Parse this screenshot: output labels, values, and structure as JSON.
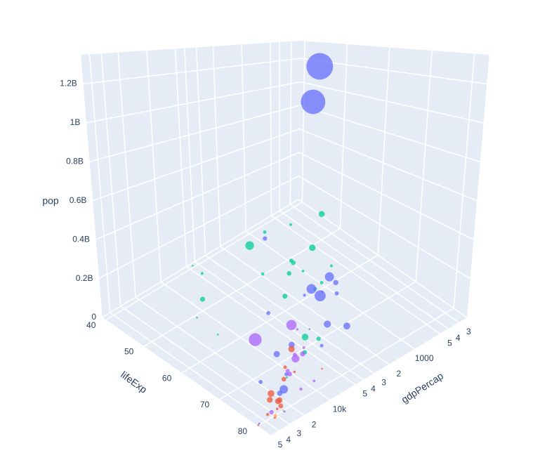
{
  "chart_data": {
    "type": "scatter3d",
    "x_label": "gdpPercap",
    "y_label": "lifeExp",
    "z_label": "pop",
    "xlog": true,
    "grid": true,
    "xlim": [
      240,
      50000
    ],
    "ylim": [
      39,
      83.5
    ],
    "zlim": [
      0,
      1350000000
    ],
    "xticks": [
      {
        "value": 300,
        "label": "3"
      },
      {
        "value": 400,
        "label": "4"
      },
      {
        "value": 500,
        "label": "5"
      },
      1000,
      {
        "value": 2000,
        "label": "2"
      },
      {
        "value": 3000,
        "label": "3"
      },
      {
        "value": 4000,
        "label": "4"
      },
      {
        "value": 5000,
        "label": "5"
      },
      {
        "value": 10000,
        "label": "10k"
      },
      {
        "value": 20000,
        "label": "2"
      },
      {
        "value": 30000,
        "label": "3"
      },
      {
        "value": 40000,
        "label": "4"
      },
      {
        "value": 50000,
        "label": "5"
      }
    ],
    "yticks": [
      40,
      50,
      60,
      70,
      80
    ],
    "zticks": [
      0,
      {
        "value": 200000000,
        "label": "0.2B"
      },
      {
        "value": 400000000,
        "label": "0.4B"
      },
      {
        "value": 600000000,
        "label": "0.6B"
      },
      {
        "value": 800000000,
        "label": "0.8B"
      },
      {
        "value": 1000000000,
        "label": "1B"
      },
      {
        "value": 1200000000,
        "label": "1.2B"
      }
    ],
    "series": [
      {
        "color": "#636efa",
        "x": [
          4959,
          2452,
          3541,
          2606,
          1391,
          31656,
          3190,
          2442,
          11606,
          7458,
          944,
          23348,
          975,
          1091,
          4471,
          21655,
          12452,
          3970,
          1714,
          25523,
          47143,
          3096
        ],
        "y": [
          73.0,
          64.7,
          70.7,
          65.5,
          64.1,
          82.6,
          71.7,
          74.2,
          71.0,
          70.6,
          62.1,
          78.6,
          43.8,
          63.8,
          59.5,
          72.8,
          74.2,
          72.4,
          59.7,
          80.7,
          80.0,
          66.8
        ],
        "z": [
          1318700000,
          1110400000,
          223500000,
          169300000,
          150400000,
          127500000,
          91100000,
          85300000,
          69500000,
          65100000,
          47800000,
          49000000,
          31900000,
          28900000,
          27500000,
          27600000,
          24800000,
          20400000,
          14100000,
          6400000,
          4600000,
          2900000
        ]
      },
      {
        "color": "#EF553B",
        "x": [
          32170,
          8458,
          30470,
          33203,
          28570,
          28821,
          15390,
          10808,
          36798,
          27538,
          33860,
          49357,
          5937,
          9787
        ],
        "y": [
          79.4,
          71.8,
          80.7,
          79.4,
          80.5,
          80.9,
          75.6,
          72.5,
          79.8,
          79.5,
          80.9,
          80.2,
          76.4,
          74.0
        ],
        "z": [
          82400000,
          71200000,
          61100000,
          60800000,
          58100000,
          40400000,
          38500000,
          22300000,
          16600000,
          10700000,
          9000000,
          4600000,
          3600000,
          10200000
        ]
      },
      {
        "color": "#00cc96",
        "x": [
          2014,
          691,
          5581,
          278,
          9270,
          2602,
          1107,
          1463,
          3820,
          6223,
          1056,
          1328,
          824,
          1044,
          2042,
          4797,
          470,
          1043,
          620,
          12570,
          13206,
          12057,
          4513
        ],
        "y": [
          46.9,
          52.9,
          71.3,
          46.5,
          49.3,
          58.6,
          52.5,
          54.1,
          71.2,
          72.3,
          51.5,
          60.0,
          42.1,
          59.4,
          50.4,
          42.7,
          43.5,
          54.5,
          56.9,
          50.7,
          56.7,
          74.0,
          39.6
        ],
        "z": [
          135000000,
          76500000,
          80300000,
          64600000,
          44000000,
          42300000,
          38100000,
          35600000,
          33800000,
          33300000,
          29200000,
          22900000,
          20000000,
          19200000,
          17700000,
          12400000,
          12300000,
          12000000,
          12900000,
          1600000,
          1500000,
          6000000,
          1100000
        ]
      },
      {
        "color": "#ab63fa",
        "x": [
          42952,
          9066,
          11978,
          7007,
          12779,
          36319,
          7409,
          11416,
          13172,
          5186,
          8948,
          1202,
          3822
        ],
        "y": [
          78.2,
          72.4,
          76.2,
          72.9,
          75.3,
          80.7,
          71.4,
          73.7,
          78.6,
          70.3,
          78.3,
          60.9,
          65.6
        ],
        "z": [
          301100000,
          190000000,
          108700000,
          44200000,
          40300000,
          33400000,
          28700000,
          26100000,
          16300000,
          12600000,
          11400000,
          8500000,
          9100000
        ]
      },
      {
        "color": "#FFA15A",
        "x": [
          34435,
          25185
        ],
        "y": [
          81.2,
          80.2
        ],
        "z": [
          20400000,
          4100000
        ]
      }
    ]
  }
}
